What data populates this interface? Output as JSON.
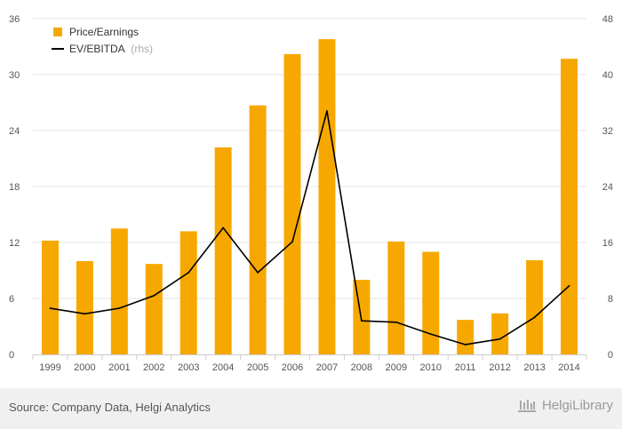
{
  "chart_data": {
    "type": "bar",
    "categories": [
      "1999",
      "2000",
      "2001",
      "2002",
      "2003",
      "2004",
      "2005",
      "2006",
      "2007",
      "2008",
      "2009",
      "2010",
      "2011",
      "2012",
      "2013",
      "2014"
    ],
    "series": [
      {
        "name": "Price/Earnings",
        "type": "bar",
        "axis": "left",
        "color": "#f7a800",
        "values": [
          12.2,
          10.0,
          13.5,
          9.7,
          13.2,
          22.2,
          26.7,
          32.2,
          33.8,
          8.0,
          12.1,
          11.0,
          3.7,
          4.4,
          10.1,
          31.7
        ]
      },
      {
        "name": "EV/EBITDA",
        "name_suffix": "(rhs)",
        "type": "line",
        "axis": "right",
        "color": "#000000",
        "values": [
          6.6,
          5.8,
          6.6,
          8.4,
          11.7,
          18.1,
          11.7,
          16.1,
          34.8,
          4.8,
          4.6,
          2.9,
          1.4,
          2.2,
          5.3,
          9.8
        ]
      }
    ],
    "y_left": {
      "ylim": [
        0,
        36
      ],
      "ticks": [
        "0",
        "6",
        "12",
        "18",
        "24",
        "30",
        "36"
      ]
    },
    "y_right": {
      "ylim": [
        0,
        48
      ],
      "ticks": [
        "0",
        "8",
        "16",
        "24",
        "32",
        "40",
        "48"
      ]
    },
    "grid": true,
    "legend_position": "top-left",
    "title": "",
    "xlabel": "",
    "ylabel": ""
  },
  "footer": {
    "source": "Source: Company Data, Helgi Analytics",
    "brand": "HelgiLibrary"
  },
  "colors": {
    "bar": "#f7a800",
    "line": "#000000",
    "grid": "#e6e6e6",
    "footer_bg": "#f0f0f0"
  }
}
